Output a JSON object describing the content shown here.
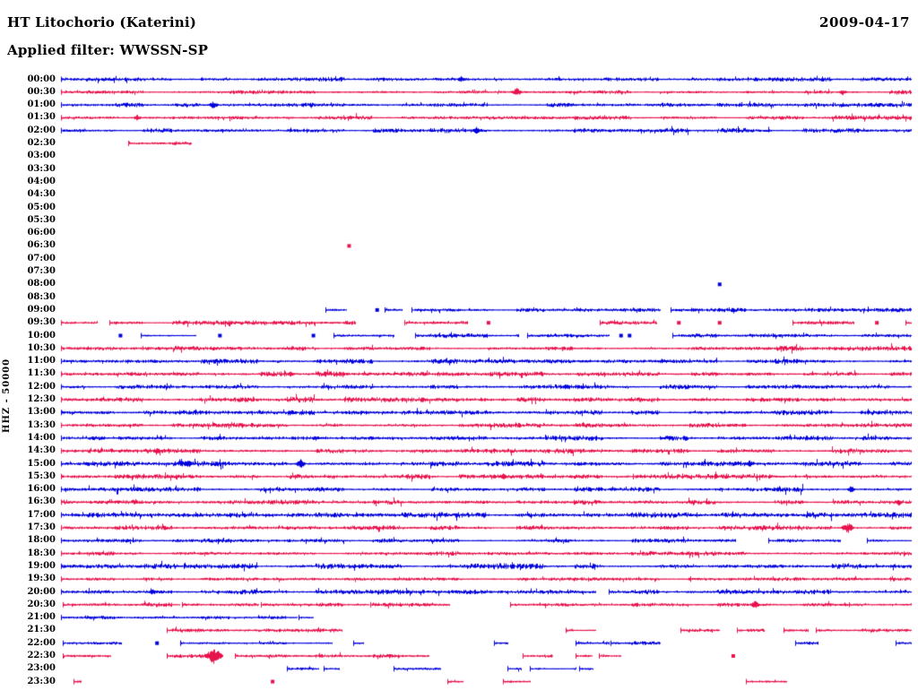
{
  "chart_data": {
    "type": "helicorder",
    "title": "HT Litochorio (Katerini)",
    "date": "2009-04-17",
    "filter": "Applied filter: WWSSN-SP",
    "y_axis_label": "HHZ - 50000",
    "minutes_per_line": 30,
    "time_range": [
      "00:00",
      "23:30"
    ],
    "trace_colors": {
      "blue": "#0000dd",
      "red": "#e8124c"
    },
    "note_segments": "segs = [startFraction, endFraction, noiseHalfAmplitudePx] of each drawn trace piece; spikes = [xFraction, amplitudePx] event bursts",
    "rows": [
      {
        "label": "00:00",
        "color": "blue",
        "segs": [
          [
            0,
            1,
            1.6
          ]
        ],
        "spikes": [
          [
            0.47,
            2.5
          ]
        ]
      },
      {
        "label": "00:30",
        "color": "red",
        "segs": [
          [
            0,
            1,
            1.5
          ]
        ],
        "spikes": [
          [
            0.536,
            4
          ],
          [
            0.92,
            2.5
          ]
        ]
      },
      {
        "label": "01:00",
        "color": "blue",
        "segs": [
          [
            0,
            1,
            1.6
          ]
        ],
        "spikes": [
          [
            0.179,
            3.5
          ]
        ]
      },
      {
        "label": "01:30",
        "color": "red",
        "segs": [
          [
            0,
            1,
            1.5
          ]
        ],
        "spikes": [
          [
            0.09,
            2.5
          ]
        ]
      },
      {
        "label": "02:00",
        "color": "blue",
        "segs": [
          [
            0,
            1,
            1.7
          ]
        ],
        "spikes": [
          [
            0.488,
            3
          ]
        ]
      },
      {
        "label": "02:30",
        "color": "red",
        "segs": [
          [
            0.079,
            0.153,
            1.1
          ]
        ],
        "spikes": []
      },
      {
        "label": "03:00",
        "color": "blue",
        "segs": [],
        "spikes": []
      },
      {
        "label": "03:30",
        "color": "red",
        "segs": [],
        "spikes": []
      },
      {
        "label": "04:00",
        "color": "blue",
        "segs": [],
        "spikes": []
      },
      {
        "label": "04:30",
        "color": "red",
        "segs": [],
        "spikes": []
      },
      {
        "label": "05:00",
        "color": "blue",
        "segs": [],
        "spikes": []
      },
      {
        "label": "05:30",
        "color": "red",
        "segs": [],
        "spikes": []
      },
      {
        "label": "06:00",
        "color": "blue",
        "segs": [],
        "spikes": []
      },
      {
        "label": "06:30",
        "color": "red",
        "segs": [
          [
            0.338,
            0.341,
            1.5
          ]
        ],
        "spikes": []
      },
      {
        "label": "07:00",
        "color": "blue",
        "segs": [],
        "spikes": []
      },
      {
        "label": "07:30",
        "color": "red",
        "segs": [],
        "spikes": []
      },
      {
        "label": "08:00",
        "color": "blue",
        "segs": [
          [
            0.774,
            0.777,
            1.5
          ]
        ],
        "spikes": []
      },
      {
        "label": "08:30",
        "color": "red",
        "segs": [],
        "spikes": []
      },
      {
        "label": "09:00",
        "color": "blue",
        "segs": [
          [
            0.311,
            0.335,
            1.3
          ],
          [
            0.371,
            0.374,
            1
          ],
          [
            0.381,
            0.401,
            1.3
          ],
          [
            0.412,
            0.705,
            1.5
          ],
          [
            0.717,
            1,
            1.6
          ]
        ],
        "spikes": []
      },
      {
        "label": "09:30",
        "color": "red",
        "segs": [
          [
            0,
            0.042,
            1.4
          ],
          [
            0.057,
            0.346,
            1.6
          ],
          [
            0.404,
            0.478,
            1.4
          ],
          [
            0.502,
            0.505,
            1
          ],
          [
            0.634,
            0.7,
            1.4
          ],
          [
            0.726,
            0.729,
            1
          ],
          [
            0.774,
            0.777,
            1
          ],
          [
            0.861,
            0.932,
            1.4
          ],
          [
            0.959,
            0.962,
            1
          ],
          [
            0.994,
            1,
            1
          ]
        ],
        "spikes": []
      },
      {
        "label": "10:00",
        "color": "blue",
        "segs": [
          [
            0.069,
            0.072,
            1
          ],
          [
            0.094,
            0.158,
            1.4
          ],
          [
            0.186,
            0.189,
            1
          ],
          [
            0.296,
            0.299,
            1
          ],
          [
            0.321,
            0.391,
            1.4
          ],
          [
            0.417,
            0.538,
            1.5
          ],
          [
            0.549,
            0.644,
            1.5
          ],
          [
            0.658,
            0.661,
            1
          ],
          [
            0.668,
            0.671,
            1
          ],
          [
            0.719,
            1,
            1.6
          ]
        ],
        "spikes": []
      },
      {
        "label": "10:30",
        "color": "red",
        "segs": [
          [
            0,
            1,
            1.8
          ]
        ],
        "spikes": []
      },
      {
        "label": "11:00",
        "color": "blue",
        "segs": [
          [
            0,
            1,
            1.8
          ]
        ],
        "spikes": []
      },
      {
        "label": "11:30",
        "color": "red",
        "segs": [
          [
            0,
            1,
            2
          ]
        ],
        "spikes": [
          [
            0.27,
            2.5
          ]
        ]
      },
      {
        "label": "12:00",
        "color": "blue",
        "segs": [
          [
            0,
            1,
            1.8
          ]
        ],
        "spikes": [
          [
            0.594,
            3
          ]
        ]
      },
      {
        "label": "12:30",
        "color": "red",
        "segs": [
          [
            0,
            1,
            2
          ]
        ],
        "spikes": []
      },
      {
        "label": "13:00",
        "color": "blue",
        "segs": [
          [
            0,
            1,
            2
          ]
        ],
        "spikes": []
      },
      {
        "label": "13:30",
        "color": "red",
        "segs": [
          [
            0,
            1,
            1.8
          ]
        ],
        "spikes": []
      },
      {
        "label": "14:00",
        "color": "blue",
        "segs": [
          [
            0,
            1,
            1.9
          ]
        ],
        "spikes": [
          [
            0.3,
            2.5
          ]
        ]
      },
      {
        "label": "14:30",
        "color": "red",
        "segs": [
          [
            0,
            1,
            1.9
          ]
        ],
        "spikes": [
          [
            0.113,
            2.5
          ]
        ]
      },
      {
        "label": "15:00",
        "color": "blue",
        "segs": [
          [
            0,
            1,
            2
          ]
        ],
        "spikes": [
          [
            0.15,
            3.5
          ],
          [
            0.282,
            4
          ],
          [
            0.81,
            3
          ]
        ]
      },
      {
        "label": "15:30",
        "color": "red",
        "segs": [
          [
            0,
            1,
            1.9
          ]
        ],
        "spikes": [
          [
            0.52,
            2.5
          ]
        ]
      },
      {
        "label": "16:00",
        "color": "blue",
        "segs": [
          [
            0,
            1,
            2
          ]
        ],
        "spikes": [
          [
            0.929,
            3
          ]
        ]
      },
      {
        "label": "16:30",
        "color": "red",
        "segs": [
          [
            0,
            1,
            1.8
          ]
        ],
        "spikes": [
          [
            0.985,
            3
          ]
        ]
      },
      {
        "label": "17:00",
        "color": "blue",
        "segs": [
          [
            0,
            1,
            2.1
          ]
        ],
        "spikes": []
      },
      {
        "label": "17:30",
        "color": "red",
        "segs": [
          [
            0,
            1,
            1.7
          ]
        ],
        "spikes": [
          [
            0.925,
            5.5
          ]
        ]
      },
      {
        "label": "18:00",
        "color": "blue",
        "segs": [
          [
            0,
            0.793,
            1.5
          ],
          [
            0.832,
            0.917,
            1.3
          ],
          [
            0.948,
            1,
            1.3
          ]
        ],
        "spikes": []
      },
      {
        "label": "18:30",
        "color": "red",
        "segs": [
          [
            0,
            1,
            1.6
          ]
        ],
        "spikes": []
      },
      {
        "label": "19:00",
        "color": "blue",
        "segs": [
          [
            0,
            1,
            2.2
          ]
        ],
        "spikes": []
      },
      {
        "label": "19:30",
        "color": "red",
        "segs": [
          [
            0,
            0.74,
            1.1
          ],
          [
            0.74,
            1,
            1.6
          ]
        ],
        "spikes": []
      },
      {
        "label": "20:00",
        "color": "blue",
        "segs": [
          [
            0,
            0.629,
            1.8
          ],
          [
            0.644,
            1,
            1.8
          ]
        ],
        "spikes": [
          [
            0.108,
            3
          ]
        ]
      },
      {
        "label": "20:30",
        "color": "red",
        "segs": [
          [
            0.002,
            0.139,
            1.5
          ],
          [
            0.142,
            0.232,
            1.5
          ],
          [
            0.235,
            0.362,
            1.5
          ],
          [
            0.364,
            0.457,
            1.4
          ],
          [
            0.529,
            1,
            1.5
          ]
        ],
        "spikes": [
          [
            0.816,
            3.5
          ]
        ]
      },
      {
        "label": "21:00",
        "color": "blue",
        "segs": [
          [
            0,
            0.277,
            1.4
          ],
          [
            0.28,
            0.296,
            1.2
          ]
        ],
        "spikes": []
      },
      {
        "label": "21:30",
        "color": "red",
        "segs": [
          [
            0.124,
            0.33,
            1.4
          ],
          [
            0.594,
            0.629,
            1.3
          ],
          [
            0.729,
            0.774,
            1.2
          ],
          [
            0.795,
            0.827,
            1.2
          ],
          [
            0.85,
            0.879,
            1.2
          ],
          [
            0.888,
            1,
            1.4
          ]
        ],
        "spikes": []
      },
      {
        "label": "22:00",
        "color": "blue",
        "segs": [
          [
            0.002,
            0.071,
            1.3
          ],
          [
            0.112,
            0.115,
            1
          ],
          [
            0.14,
            0.319,
            1.4
          ],
          [
            0.344,
            0.356,
            1.1
          ],
          [
            0.51,
            0.525,
            1.1
          ],
          [
            0.605,
            0.644,
            1.2
          ],
          [
            0.647,
            0.705,
            1.3
          ],
          [
            0.864,
            0.89,
            1.2
          ],
          [
            0.982,
            1,
            1.2
          ]
        ],
        "spikes": []
      },
      {
        "label": "22:30",
        "color": "red",
        "segs": [
          [
            0.002,
            0.058,
            1.3
          ],
          [
            0.124,
            0.187,
            1.6
          ],
          [
            0.205,
            0.433,
            1.5
          ],
          [
            0.543,
            0.578,
            1.2
          ],
          [
            0.605,
            0.624,
            1.1
          ],
          [
            0.633,
            0.658,
            1.1
          ],
          [
            0.79,
            0.793,
            1
          ]
        ],
        "spikes": [
          [
            0.179,
            8
          ]
        ]
      },
      {
        "label": "23:00",
        "color": "blue",
        "segs": [
          [
            0.266,
            0.303,
            1.2
          ],
          [
            0.309,
            0.327,
            1.1
          ],
          [
            0.391,
            0.446,
            1.3
          ],
          [
            0.525,
            0.541,
            1.1
          ],
          [
            0.552,
            0.605,
            1.2
          ],
          [
            0.61,
            0.626,
            1.1
          ]
        ],
        "spikes": []
      },
      {
        "label": "23:30",
        "color": "red",
        "segs": [
          [
            0.015,
            0.023,
            1.2
          ],
          [
            0.248,
            0.251,
            1
          ],
          [
            0.455,
            0.473,
            1.1
          ],
          [
            0.52,
            0.552,
            1.2
          ],
          [
            0.806,
            0.853,
            1.2
          ]
        ],
        "spikes": []
      }
    ]
  }
}
